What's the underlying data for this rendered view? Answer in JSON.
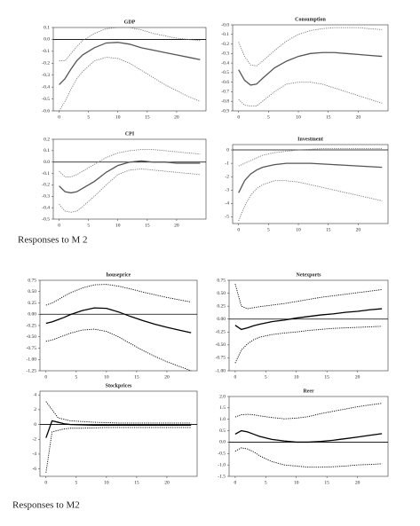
{
  "chart_data": [
    {
      "type": "line",
      "title": "GDP",
      "x": [
        0,
        1,
        2,
        3,
        4,
        6,
        8,
        10,
        12,
        14,
        16,
        18,
        20,
        22,
        24
      ],
      "xlim": [
        -1,
        25
      ],
      "xticks": [
        0,
        5,
        10,
        15,
        20
      ],
      "ylim": [
        -0.6,
        0.1
      ],
      "yticks": [
        0.1,
        {
          "value": 0,
          "label": "0.0"
        },
        -0.1,
        -0.2,
        -0.3,
        -0.4,
        -0.5,
        -0.6
      ],
      "zero_line": true,
      "series": [
        {
          "style": "solid",
          "color": "#555555",
          "values": [
            -0.38,
            -0.33,
            -0.25,
            -0.18,
            -0.13,
            -0.07,
            -0.03,
            -0.025,
            -0.04,
            -0.07,
            -0.09,
            -0.11,
            -0.13,
            -0.15,
            -0.17
          ]
        },
        {
          "style": "dotted",
          "color": "#777777",
          "values": [
            -0.18,
            -0.18,
            -0.12,
            -0.06,
            -0.01,
            0.05,
            0.09,
            0.1,
            0.1,
            0.08,
            0.05,
            0.03,
            0.01,
            0,
            -0.01
          ]
        },
        {
          "style": "dotted",
          "color": "#777777",
          "values": [
            -0.6,
            -0.52,
            -0.42,
            -0.33,
            -0.27,
            -0.18,
            -0.15,
            -0.16,
            -0.2,
            -0.26,
            -0.32,
            -0.38,
            -0.43,
            -0.48,
            -0.52
          ]
        }
      ]
    },
    {
      "type": "line",
      "title": "Consumption",
      "x": [
        0,
        1,
        2,
        3,
        4,
        6,
        8,
        10,
        12,
        14,
        16,
        18,
        20,
        22,
        24
      ],
      "xlim": [
        -1,
        25
      ],
      "xticks": [
        0,
        5,
        10,
        15,
        20
      ],
      "ylim": [
        -0.9,
        0
      ],
      "yticks": [
        {
          "value": 0,
          "label": "-0.0"
        },
        -0.1,
        -0.2,
        -0.3,
        -0.4,
        -0.5,
        -0.6,
        -0.7,
        -0.8,
        -0.9
      ],
      "zero_line": false,
      "series": [
        {
          "style": "solid",
          "color": "#555555",
          "values": [
            -0.47,
            -0.58,
            -0.63,
            -0.62,
            -0.56,
            -0.45,
            -0.38,
            -0.33,
            -0.3,
            -0.29,
            -0.29,
            -0.3,
            -0.31,
            -0.32,
            -0.33
          ]
        },
        {
          "style": "dotted",
          "color": "#777777",
          "values": [
            -0.18,
            -0.33,
            -0.42,
            -0.43,
            -0.38,
            -0.27,
            -0.17,
            -0.1,
            -0.06,
            -0.04,
            -0.03,
            -0.03,
            -0.03,
            -0.04,
            -0.05
          ]
        },
        {
          "style": "dotted",
          "color": "#777777",
          "values": [
            -0.78,
            -0.84,
            -0.85,
            -0.85,
            -0.8,
            -0.7,
            -0.62,
            -0.6,
            -0.6,
            -0.62,
            -0.66,
            -0.7,
            -0.74,
            -0.78,
            -0.82
          ]
        }
      ]
    },
    {
      "type": "line",
      "title": "CPI",
      "x": [
        0,
        1,
        2,
        3,
        4,
        6,
        8,
        10,
        12,
        14,
        16,
        18,
        20,
        22,
        24
      ],
      "xlim": [
        -1,
        25
      ],
      "xticks": [
        0,
        5,
        10,
        15,
        20
      ],
      "ylim": [
        -0.5,
        0.2
      ],
      "yticks": [
        0.2,
        0.1,
        {
          "value": 0,
          "label": "0.0"
        },
        -0.1,
        -0.2,
        -0.3,
        -0.4,
        -0.5
      ],
      "zero_line": true,
      "series": [
        {
          "style": "solid",
          "color": "#555555",
          "values": [
            -0.21,
            -0.26,
            -0.27,
            -0.26,
            -0.23,
            -0.17,
            -0.09,
            -0.03,
            0,
            0.01,
            0,
            0,
            -0.01,
            -0.01,
            -0.01
          ]
        },
        {
          "style": "dotted",
          "color": "#777777",
          "values": [
            -0.08,
            -0.13,
            -0.13,
            -0.11,
            -0.08,
            -0.02,
            0.04,
            0.08,
            0.1,
            0.11,
            0.11,
            0.1,
            0.09,
            0.08,
            0.07
          ]
        },
        {
          "style": "dotted",
          "color": "#777777",
          "values": [
            -0.37,
            -0.43,
            -0.44,
            -0.43,
            -0.39,
            -0.3,
            -0.2,
            -0.11,
            -0.07,
            -0.06,
            -0.07,
            -0.08,
            -0.09,
            -0.1,
            -0.11
          ]
        }
      ]
    },
    {
      "type": "line",
      "title": "Investment",
      "x": [
        0,
        1,
        2,
        3,
        4,
        6,
        8,
        10,
        12,
        14,
        16,
        18,
        20,
        22,
        24
      ],
      "xlim": [
        -1,
        25
      ],
      "xticks": [
        0,
        5,
        10,
        15,
        20
      ],
      "ylim": [
        -5.5,
        0.4
      ],
      "yticks": [
        0,
        -1,
        -2,
        -3,
        -4,
        -5
      ],
      "zero_line": true,
      "series": [
        {
          "style": "solid",
          "color": "#555555",
          "values": [
            -3.2,
            -2.3,
            -1.8,
            -1.5,
            -1.3,
            -1.1,
            -1,
            -1,
            -1,
            -1.05,
            -1.1,
            -1.15,
            -1.2,
            -1.25,
            -1.3
          ]
        },
        {
          "style": "dotted",
          "color": "#777777",
          "values": [
            -1.2,
            -1,
            -0.8,
            -0.6,
            -0.4,
            -0.2,
            -0.1,
            0,
            0.05,
            0.1,
            0.1,
            0.1,
            0.1,
            0.1,
            0.1
          ]
        },
        {
          "style": "dotted",
          "color": "#777777",
          "values": [
            -5.3,
            -4.2,
            -3.4,
            -2.9,
            -2.6,
            -2.3,
            -2.3,
            -2.4,
            -2.6,
            -2.8,
            -3,
            -3.2,
            -3.4,
            -3.6,
            -3.8
          ]
        }
      ]
    },
    {
      "type": "line",
      "title": "houseprice",
      "x": [
        0,
        1,
        2,
        3,
        4,
        6,
        8,
        10,
        12,
        14,
        16,
        18,
        20,
        22,
        24
      ],
      "xlim": [
        -1,
        25
      ],
      "xticks": [
        0,
        5,
        10,
        15,
        20
      ],
      "ylim": [
        -1.25,
        0.75
      ],
      "yticks": [
        0.75,
        {
          "value": 0.5,
          "label": "0.50"
        },
        0.25,
        {
          "value": 0,
          "label": "0.00"
        },
        -0.25,
        {
          "value": -0.5,
          "label": "-0.50"
        },
        -0.75,
        {
          "value": -1,
          "label": "-1.00"
        },
        -1.25
      ],
      "zero_line": true,
      "series": [
        {
          "style": "solid",
          "color": "#000000",
          "values": [
            -0.2,
            -0.17,
            -0.12,
            -0.07,
            -0.01,
            0.08,
            0.14,
            0.13,
            0.05,
            -0.05,
            -0.14,
            -0.22,
            -0.29,
            -0.35,
            -0.41
          ]
        },
        {
          "style": "dotted",
          "color": "#000000",
          "values": [
            0.2,
            0.25,
            0.32,
            0.4,
            0.47,
            0.58,
            0.65,
            0.66,
            0.62,
            0.56,
            0.49,
            0.43,
            0.37,
            0.32,
            0.27
          ]
        },
        {
          "style": "dotted",
          "color": "#000000",
          "values": [
            -0.6,
            -0.57,
            -0.52,
            -0.47,
            -0.42,
            -0.35,
            -0.33,
            -0.38,
            -0.5,
            -0.65,
            -0.8,
            -0.93,
            -1.05,
            -1.15,
            -1.25
          ]
        }
      ]
    },
    {
      "type": "line",
      "title": "Netexports",
      "x": [
        0,
        1,
        2,
        3,
        4,
        6,
        8,
        10,
        12,
        14,
        16,
        18,
        20,
        22,
        24
      ],
      "xlim": [
        -1,
        25
      ],
      "xticks": [
        0,
        5,
        10,
        15,
        20
      ],
      "ylim": [
        -1,
        0.75
      ],
      "yticks": [
        0.75,
        {
          "value": 0.5,
          "label": "0.50"
        },
        0.25,
        {
          "value": 0,
          "label": "0.00"
        },
        -0.25,
        {
          "value": -0.5,
          "label": "-0.50"
        },
        -0.75,
        {
          "value": -1,
          "label": "-1.00"
        }
      ],
      "zero_line": true,
      "series": [
        {
          "style": "solid",
          "color": "#000000",
          "values": [
            -0.12,
            -0.2,
            -0.17,
            -0.13,
            -0.1,
            -0.05,
            -0.02,
            0.02,
            0.05,
            0.08,
            0.1,
            0.13,
            0.15,
            0.18,
            0.2
          ]
        },
        {
          "style": "dotted",
          "color": "#000000",
          "values": [
            0.68,
            0.25,
            0.2,
            0.22,
            0.24,
            0.27,
            0.3,
            0.34,
            0.38,
            0.42,
            0.45,
            0.48,
            0.51,
            0.54,
            0.57
          ]
        },
        {
          "style": "dotted",
          "color": "#000000",
          "values": [
            -0.85,
            -0.6,
            -0.48,
            -0.4,
            -0.35,
            -0.3,
            -0.27,
            -0.25,
            -0.22,
            -0.2,
            -0.18,
            -0.17,
            -0.16,
            -0.15,
            -0.14
          ]
        }
      ]
    },
    {
      "type": "line",
      "title": "Stockprices",
      "x": [
        0,
        1,
        2,
        3,
        4,
        6,
        8,
        10,
        12,
        14,
        16,
        18,
        20,
        22,
        24
      ],
      "xlim": [
        -1,
        25
      ],
      "xticks": [
        0,
        5,
        10,
        15,
        20
      ],
      "ylim": [
        -7,
        4.5
      ],
      "yticks": [
        4,
        2,
        0,
        -2,
        -4,
        -6
      ],
      "zero_line": true,
      "series": [
        {
          "style": "solid",
          "color": "#000000",
          "values": [
            -1.8,
            0.5,
            0.3,
            0.1,
            0,
            -0.05,
            -0.1,
            -0.1,
            -0.1,
            -0.1,
            -0.1,
            -0.1,
            -0.1,
            -0.1,
            -0.1
          ]
        },
        {
          "style": "dotted",
          "color": "#000000",
          "values": [
            3.1,
            2,
            0.9,
            0.7,
            0.5,
            0.4,
            0.3,
            0.25,
            0.2,
            0.2,
            0.2,
            0.2,
            0.2,
            0.2,
            0.2
          ]
        },
        {
          "style": "dotted",
          "color": "#000000",
          "values": [
            -6.5,
            -1,
            -0.8,
            -0.6,
            -0.5,
            -0.5,
            -0.45,
            -0.4,
            -0.4,
            -0.4,
            -0.4,
            -0.4,
            -0.4,
            -0.4,
            -0.4
          ]
        }
      ]
    },
    {
      "type": "line",
      "title": "Reer",
      "x": [
        0,
        1,
        2,
        3,
        4,
        6,
        8,
        10,
        12,
        14,
        16,
        18,
        20,
        22,
        24
      ],
      "xlim": [
        -1,
        25
      ],
      "xticks": [
        0,
        5,
        10,
        15,
        20
      ],
      "ylim": [
        -1.5,
        2
      ],
      "yticks": [
        {
          "value": 2,
          "label": "2.0"
        },
        1.5,
        {
          "value": 1,
          "label": "1.0"
        },
        0.5,
        {
          "value": 0,
          "label": "0.0"
        },
        -0.5,
        {
          "value": -1,
          "label": "-1.0"
        },
        -1.5
      ],
      "zero_line": true,
      "series": [
        {
          "style": "solid",
          "color": "#000000",
          "values": [
            0.35,
            0.5,
            0.45,
            0.35,
            0.25,
            0.12,
            0.05,
            0,
            0,
            0.03,
            0.08,
            0.15,
            0.22,
            0.3,
            0.37
          ]
        },
        {
          "style": "dotted",
          "color": "#000000",
          "values": [
            1.1,
            1.2,
            1.22,
            1.2,
            1.15,
            1.08,
            1.02,
            1.05,
            1.12,
            1.25,
            1.35,
            1.45,
            1.55,
            1.63,
            1.7
          ]
        },
        {
          "style": "dotted",
          "color": "#000000",
          "values": [
            -0.4,
            -0.25,
            -0.3,
            -0.42,
            -0.6,
            -0.85,
            -1,
            -1.05,
            -1.1,
            -1.1,
            -1.08,
            -1.05,
            -1,
            -0.98,
            -0.95
          ]
        }
      ]
    }
  ],
  "captions": [
    "Responses to M 2",
    "Responses to M2"
  ]
}
